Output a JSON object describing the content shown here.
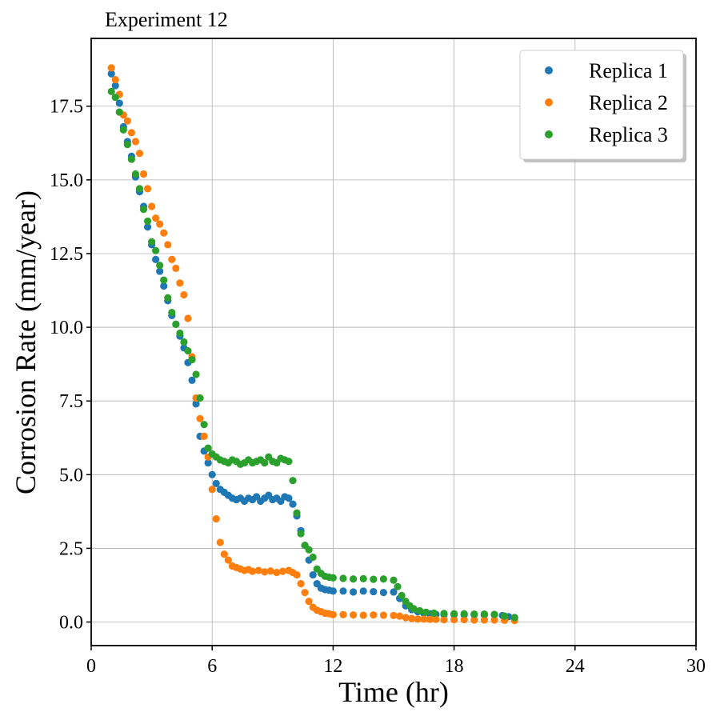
{
  "chart_data": {
    "type": "scatter",
    "title": "Experiment 12",
    "xlabel": "Time (hr)",
    "ylabel": "Corrosion Rate (mm/year)",
    "xlim": [
      0,
      30
    ],
    "ylim": [
      -0.8,
      19.8
    ],
    "xticks": [
      0,
      6,
      12,
      18,
      24,
      30
    ],
    "xtick_labels": [
      "0",
      "6",
      "12",
      "18",
      "24",
      "30"
    ],
    "yticks": [
      0,
      2.5,
      5,
      7.5,
      10,
      12.5,
      15,
      17.5
    ],
    "ytick_labels": [
      "0.0",
      "2.5",
      "5.0",
      "7.5",
      "10.0",
      "12.5",
      "15.0",
      "17.5"
    ],
    "grid": true,
    "legend_position": "top-right",
    "series": [
      {
        "name": "Replica 1",
        "color": "#1f77b4",
        "x": [
          1.0,
          1.2,
          1.4,
          1.6,
          1.8,
          2.0,
          2.2,
          2.4,
          2.6,
          2.8,
          3.0,
          3.2,
          3.4,
          3.6,
          3.8,
          4.0,
          4.2,
          4.4,
          4.6,
          4.8,
          5.0,
          5.2,
          5.4,
          5.6,
          5.8,
          6.0,
          6.2,
          6.4,
          6.6,
          6.8,
          7.0,
          7.2,
          7.4,
          7.6,
          7.8,
          8.0,
          8.2,
          8.4,
          8.6,
          8.8,
          9.0,
          9.2,
          9.4,
          9.6,
          9.8,
          10.0,
          10.2,
          10.4,
          10.6,
          10.8,
          11.0,
          11.2,
          11.4,
          11.6,
          11.8,
          12.0,
          12.5,
          13.0,
          13.5,
          14.0,
          14.5,
          15.0,
          15.3,
          15.6,
          15.9,
          16.2,
          16.5,
          16.8,
          17.1,
          17.5,
          18.0,
          18.5,
          19.0,
          19.5,
          20.0,
          20.4,
          20.7,
          21.0
        ],
        "y": [
          18.6,
          18.2,
          17.6,
          16.8,
          16.3,
          15.8,
          15.1,
          14.6,
          14.1,
          13.4,
          12.8,
          12.3,
          11.9,
          11.4,
          10.9,
          10.4,
          10.1,
          9.7,
          9.3,
          8.8,
          8.2,
          7.4,
          6.3,
          5.8,
          5.4,
          5.0,
          4.7,
          4.5,
          4.4,
          4.3,
          4.2,
          4.15,
          4.2,
          4.1,
          4.2,
          4.15,
          4.25,
          4.1,
          4.2,
          4.3,
          4.15,
          4.2,
          4.1,
          4.25,
          4.2,
          4.0,
          3.6,
          3.1,
          2.6,
          2.1,
          1.6,
          1.3,
          1.15,
          1.1,
          1.08,
          1.05,
          1.05,
          1.02,
          1.05,
          1.03,
          1.0,
          1.02,
          0.8,
          0.55,
          0.42,
          0.35,
          0.3,
          0.28,
          0.26,
          0.25,
          0.25,
          0.24,
          0.25,
          0.24,
          0.25,
          0.22,
          0.18,
          0.15
        ]
      },
      {
        "name": "Replica 2",
        "color": "#ff7f0e",
        "x": [
          1.0,
          1.2,
          1.4,
          1.6,
          1.8,
          2.0,
          2.2,
          2.4,
          2.6,
          2.8,
          3.0,
          3.2,
          3.4,
          3.6,
          3.8,
          4.0,
          4.2,
          4.4,
          4.6,
          4.8,
          5.0,
          5.2,
          5.4,
          5.6,
          5.8,
          6.0,
          6.2,
          6.4,
          6.6,
          6.8,
          7.0,
          7.2,
          7.4,
          7.6,
          7.8,
          8.0,
          8.3,
          8.6,
          8.9,
          9.2,
          9.5,
          9.8,
          10.0,
          10.2,
          10.4,
          10.6,
          10.8,
          11.0,
          11.2,
          11.4,
          11.6,
          11.8,
          12.0,
          12.5,
          13.0,
          13.5,
          14.0,
          14.5,
          15.0,
          15.3,
          15.6,
          15.9,
          16.2,
          16.5,
          16.8,
          17.1,
          17.5,
          18.0,
          18.5,
          19.0,
          19.5,
          20.0,
          20.5,
          21.0
        ],
        "y": [
          18.8,
          18.4,
          17.9,
          17.2,
          17.0,
          16.6,
          16.3,
          15.9,
          15.2,
          14.7,
          14.1,
          13.7,
          13.5,
          13.2,
          12.8,
          12.3,
          12.0,
          11.5,
          11.1,
          10.3,
          9.0,
          7.6,
          6.9,
          6.3,
          5.6,
          4.5,
          3.5,
          2.7,
          2.3,
          2.1,
          1.9,
          1.85,
          1.8,
          1.75,
          1.78,
          1.72,
          1.75,
          1.7,
          1.73,
          1.68,
          1.72,
          1.75,
          1.68,
          1.6,
          1.3,
          1.0,
          0.7,
          0.5,
          0.4,
          0.35,
          0.3,
          0.28,
          0.25,
          0.25,
          0.24,
          0.23,
          0.24,
          0.23,
          0.22,
          0.2,
          0.15,
          0.12,
          0.1,
          0.1,
          0.09,
          0.09,
          0.08,
          0.08,
          0.08,
          0.07,
          0.07,
          0.07,
          0.06,
          0.05
        ]
      },
      {
        "name": "Replica 3",
        "color": "#2ca02c",
        "x": [
          1.0,
          1.2,
          1.4,
          1.6,
          1.8,
          2.0,
          2.2,
          2.4,
          2.6,
          2.8,
          3.0,
          3.2,
          3.4,
          3.6,
          3.8,
          4.0,
          4.2,
          4.4,
          4.6,
          4.8,
          5.0,
          5.2,
          5.4,
          5.6,
          5.8,
          6.0,
          6.2,
          6.4,
          6.6,
          6.8,
          7.0,
          7.2,
          7.4,
          7.6,
          7.8,
          8.0,
          8.2,
          8.4,
          8.6,
          8.8,
          9.0,
          9.2,
          9.4,
          9.6,
          9.8,
          10.0,
          10.2,
          10.4,
          10.6,
          10.8,
          11.0,
          11.2,
          11.4,
          11.6,
          11.8,
          12.0,
          12.5,
          13.0,
          13.5,
          14.0,
          14.5,
          15.0,
          15.2,
          15.4,
          15.6,
          15.8,
          16.0,
          16.3,
          16.6,
          17.0,
          17.5,
          18.0,
          18.5,
          19.0,
          19.5,
          20.0,
          20.5,
          21.0
        ],
        "y": [
          18.0,
          17.8,
          17.3,
          16.7,
          16.2,
          15.7,
          15.2,
          14.7,
          14.0,
          13.6,
          12.9,
          12.6,
          12.1,
          11.6,
          11.0,
          10.5,
          10.1,
          9.8,
          9.5,
          9.2,
          8.9,
          8.4,
          7.6,
          6.7,
          5.9,
          5.7,
          5.6,
          5.5,
          5.45,
          5.4,
          5.5,
          5.45,
          5.35,
          5.4,
          5.5,
          5.4,
          5.45,
          5.5,
          5.4,
          5.6,
          5.45,
          5.4,
          5.55,
          5.5,
          5.45,
          4.8,
          3.7,
          3.0,
          2.6,
          2.45,
          2.2,
          1.8,
          1.65,
          1.55,
          1.52,
          1.5,
          1.48,
          1.46,
          1.47,
          1.45,
          1.46,
          1.42,
          1.2,
          0.9,
          0.7,
          0.55,
          0.45,
          0.38,
          0.33,
          0.3,
          0.29,
          0.28,
          0.28,
          0.27,
          0.27,
          0.26,
          0.2,
          0.15
        ]
      }
    ]
  }
}
